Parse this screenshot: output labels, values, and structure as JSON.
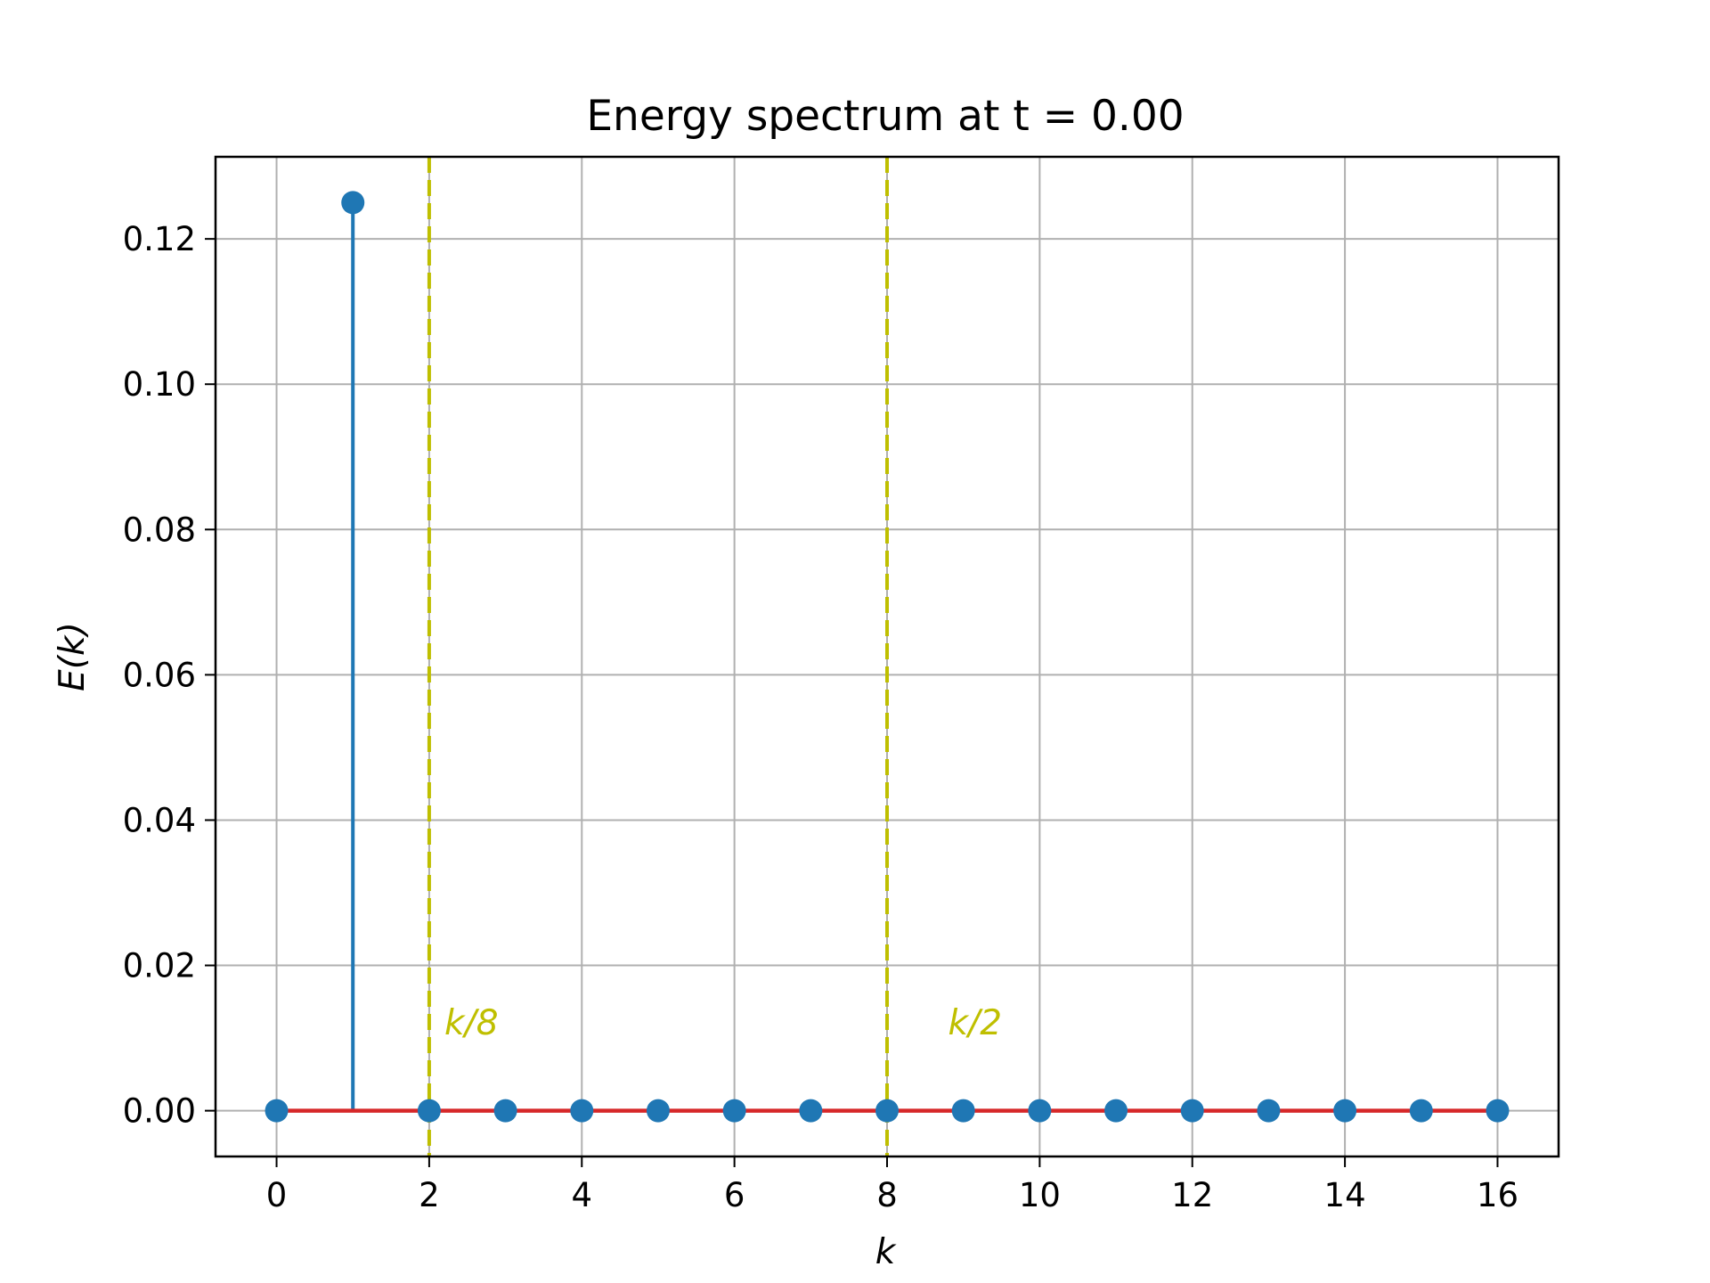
{
  "chart_data": {
    "type": "stem",
    "title": "Energy spectrum at t = 0.00",
    "xlabel": "k",
    "ylabel": "E(k)",
    "xlim": [
      -0.8,
      16.8
    ],
    "ylim": [
      -0.0063,
      0.1313
    ],
    "grid": true,
    "xticks": [
      0,
      2,
      4,
      6,
      8,
      10,
      12,
      14,
      16
    ],
    "xtick_labels": [
      "0",
      "2",
      "4",
      "6",
      "8",
      "10",
      "12",
      "14",
      "16"
    ],
    "yticks": [
      0.0,
      0.02,
      0.04,
      0.06,
      0.08,
      0.1,
      0.12
    ],
    "ytick_labels": [
      "0.00",
      "0.02",
      "0.04",
      "0.06",
      "0.08",
      "0.10",
      "0.12"
    ],
    "series": [
      {
        "x": [
          0,
          1,
          2,
          3,
          4,
          5,
          6,
          7,
          8,
          9,
          10,
          11,
          12,
          13,
          14,
          15,
          16
        ],
        "values": [
          0,
          0.125,
          0,
          0,
          0,
          0,
          0,
          0,
          0,
          0,
          0,
          0,
          0,
          0,
          0,
          0,
          0
        ],
        "marker_color": "#1f77b4",
        "baseline_color": "#d62728"
      }
    ],
    "vlines": [
      {
        "x": 2,
        "label": "k/8",
        "color": "#bfbf00",
        "style": "dashed"
      },
      {
        "x": 8,
        "label": "k/2",
        "color": "#bfbf00",
        "style": "dashed"
      }
    ],
    "annotations": [
      {
        "text": "k/8",
        "x": 2.2,
        "y": 0.0105
      },
      {
        "text": "k/2",
        "x": 8.8,
        "y": 0.0105
      }
    ]
  }
}
